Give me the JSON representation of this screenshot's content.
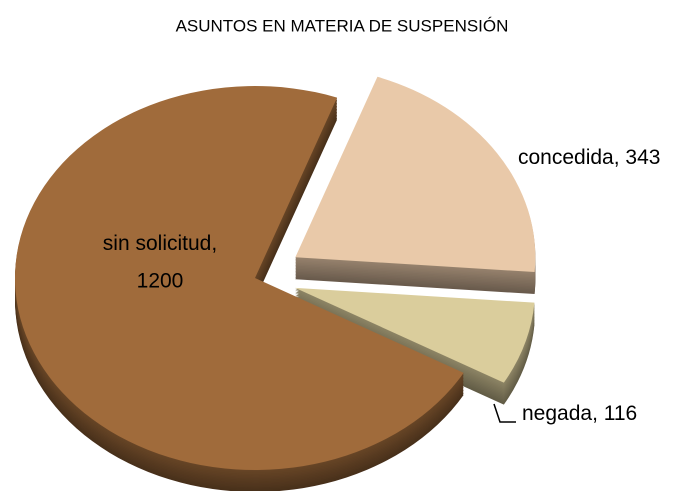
{
  "chart_data": {
    "type": "pie",
    "title": "ASUNTOS EN MATERIA DE SUSPENSIÓN",
    "categories": [
      "concedida",
      "negada",
      "sin solicitud"
    ],
    "values": [
      343,
      116,
      1200
    ],
    "colors": [
      "#e9c9a9",
      "#dacd9c",
      "#a06b3b"
    ]
  }
}
